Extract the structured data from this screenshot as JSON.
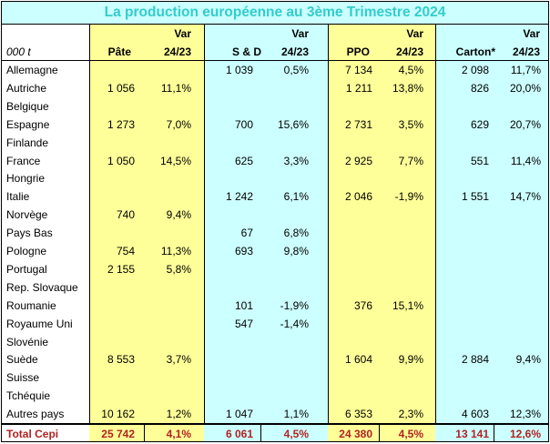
{
  "title": "La production européenne au 3ème Trimestre 2024",
  "unit_label": "000 t",
  "headers": {
    "var": "Var",
    "pate": "Pâte",
    "pate_var": "24/23",
    "sd": "S & D",
    "sd_var": "24/23",
    "ppo": "PPO",
    "ppo_var": "24/23",
    "carton": "Carton*",
    "carton_var": "24/23"
  },
  "rows": [
    {
      "country": "Allemagne",
      "pate": "",
      "pate_var": "",
      "sd": "1 039",
      "sd_var": "0,5%",
      "ppo": "7 134",
      "ppo_var": "4,5%",
      "carton": "2 098",
      "carton_var": "11,7%"
    },
    {
      "country": "Autriche",
      "pate": "1 056",
      "pate_var": "11,1%",
      "sd": "",
      "sd_var": "",
      "ppo": "1 211",
      "ppo_var": "13,8%",
      "carton": "826",
      "carton_var": "20,0%"
    },
    {
      "country": "Belgique",
      "pate": "",
      "pate_var": "",
      "sd": "",
      "sd_var": "",
      "ppo": "",
      "ppo_var": "",
      "carton": "",
      "carton_var": ""
    },
    {
      "country": "Espagne",
      "pate": "1 273",
      "pate_var": "7,0%",
      "sd": "700",
      "sd_var": "15,6%",
      "ppo": "2 731",
      "ppo_var": "3,5%",
      "carton": "629",
      "carton_var": "20,7%"
    },
    {
      "country": "Finlande",
      "pate": "",
      "pate_var": "",
      "sd": "",
      "sd_var": "",
      "ppo": "",
      "ppo_var": "",
      "carton": "",
      "carton_var": ""
    },
    {
      "country": "France",
      "pate": "1 050",
      "pate_var": "14,5%",
      "sd": "625",
      "sd_var": "3,3%",
      "ppo": "2 925",
      "ppo_var": "7,7%",
      "carton": "551",
      "carton_var": "11,4%"
    },
    {
      "country": "Hongrie",
      "pate": "",
      "pate_var": "",
      "sd": "",
      "sd_var": "",
      "ppo": "",
      "ppo_var": "",
      "carton": "",
      "carton_var": ""
    },
    {
      "country": "Italie",
      "pate": "",
      "pate_var": "",
      "sd": "1 242",
      "sd_var": "6,1%",
      "ppo": "2 046",
      "ppo_var": "-1,9%",
      "carton": "1 551",
      "carton_var": "14,7%"
    },
    {
      "country": "Norvège",
      "pate": "740",
      "pate_var": "9,4%",
      "sd": "",
      "sd_var": "",
      "ppo": "",
      "ppo_var": "",
      "carton": "",
      "carton_var": ""
    },
    {
      "country": "Pays Bas",
      "pate": "",
      "pate_var": "",
      "sd": "67",
      "sd_var": "6,8%",
      "ppo": "",
      "ppo_var": "",
      "carton": "",
      "carton_var": ""
    },
    {
      "country": "Pologne",
      "pate": "754",
      "pate_var": "11,3%",
      "sd": "693",
      "sd_var": "9,8%",
      "ppo": "",
      "ppo_var": "",
      "carton": "",
      "carton_var": ""
    },
    {
      "country": "Portugal",
      "pate": "2 155",
      "pate_var": "5,8%",
      "sd": "",
      "sd_var": "",
      "ppo": "",
      "ppo_var": "",
      "carton": "",
      "carton_var": ""
    },
    {
      "country": "Rep. Slovaque",
      "pate": "",
      "pate_var": "",
      "sd": "",
      "sd_var": "",
      "ppo": "",
      "ppo_var": "",
      "carton": "",
      "carton_var": ""
    },
    {
      "country": "Roumanie",
      "pate": "",
      "pate_var": "",
      "sd": "101",
      "sd_var": "-1,9%",
      "ppo": "376",
      "ppo_var": "15,1%",
      "carton": "",
      "carton_var": ""
    },
    {
      "country": "Royaume Uni",
      "pate": "",
      "pate_var": "",
      "sd": "547",
      "sd_var": "-1,4%",
      "ppo": "",
      "ppo_var": "",
      "carton": "",
      "carton_var": ""
    },
    {
      "country": "Slovénie",
      "pate": "",
      "pate_var": "",
      "sd": "",
      "sd_var": "",
      "ppo": "",
      "ppo_var": "",
      "carton": "",
      "carton_var": ""
    },
    {
      "country": "Suède",
      "pate": "8 553",
      "pate_var": "3,7%",
      "sd": "",
      "sd_var": "",
      "ppo": "1 604",
      "ppo_var": "9,9%",
      "carton": "2 884",
      "carton_var": "9,4%"
    },
    {
      "country": "Suisse",
      "pate": "",
      "pate_var": "",
      "sd": "",
      "sd_var": "",
      "ppo": "",
      "ppo_var": "",
      "carton": "",
      "carton_var": ""
    },
    {
      "country": "Tchéquie",
      "pate": "",
      "pate_var": "",
      "sd": "",
      "sd_var": "",
      "ppo": "",
      "ppo_var": "",
      "carton": "",
      "carton_var": ""
    },
    {
      "country": "Autres pays",
      "pate": "10 162",
      "pate_var": "1,2%",
      "sd": "1 047",
      "sd_var": "1,1%",
      "ppo": "6 353",
      "ppo_var": "2,3%",
      "carton": "4 603",
      "carton_var": "12,3%"
    }
  ],
  "total": {
    "country": "Total Cepi",
    "pate": "25 742",
    "pate_var": "4,1%",
    "sd": "6 061",
    "sd_var": "4,5%",
    "ppo": "24 380",
    "ppo_var": "4,5%",
    "carton": "13 141",
    "carton_var": "12,6%"
  },
  "colors": {
    "title_text": "#33cccc",
    "yellow": "#ffff99",
    "cyan": "#ccffff",
    "total_text": "#b22222"
  }
}
